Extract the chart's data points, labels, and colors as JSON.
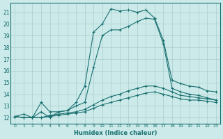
{
  "background_color": "#cceaea",
  "line_color": "#1a7070",
  "grid_color": "#aacccc",
  "xlabel": "Humidex (Indice chaleur)",
  "ylim": [
    11.5,
    21.8
  ],
  "xlim": [
    -0.5,
    23.5
  ],
  "yticks": [
    12,
    13,
    14,
    15,
    16,
    17,
    18,
    19,
    20,
    21
  ],
  "xticks": [
    0,
    1,
    2,
    3,
    4,
    5,
    6,
    7,
    8,
    9,
    10,
    11,
    12,
    13,
    14,
    15,
    16,
    17,
    18,
    19,
    20,
    21,
    22,
    23
  ],
  "lines": [
    {
      "x": [
        0,
        1,
        2,
        3,
        4,
        5,
        6,
        7,
        8,
        9,
        10,
        11,
        12,
        13,
        14,
        15,
        16,
        17,
        18,
        19,
        20,
        21,
        22,
        23
      ],
      "y": [
        12.1,
        12.3,
        12.0,
        12.5,
        12.0,
        12.5,
        12.6,
        13.3,
        14.7,
        19.3,
        20.0,
        21.3,
        21.1,
        21.2,
        21.0,
        21.2,
        20.5,
        18.6,
        15.2,
        14.9,
        14.7,
        14.6,
        14.3,
        14.2
      ]
    },
    {
      "x": [
        0,
        1,
        2,
        3,
        4,
        5,
        6,
        7,
        8,
        9,
        10,
        11,
        12,
        13,
        14,
        15,
        16,
        17,
        18,
        19,
        20,
        21,
        22,
        23
      ],
      "y": [
        12.1,
        12.0,
        12.0,
        12.0,
        12.2,
        12.3,
        12.4,
        12.5,
        12.7,
        13.1,
        13.5,
        13.8,
        14.0,
        14.3,
        14.5,
        14.7,
        14.7,
        14.5,
        14.2,
        13.9,
        13.8,
        13.7,
        13.6,
        13.5
      ]
    },
    {
      "x": [
        0,
        1,
        2,
        3,
        4,
        5,
        6,
        7,
        8,
        9,
        10,
        11,
        12,
        13,
        14,
        15,
        16,
        17,
        18,
        19,
        20,
        21,
        22,
        23
      ],
      "y": [
        12.1,
        12.0,
        12.0,
        12.0,
        12.1,
        12.2,
        12.3,
        12.4,
        12.5,
        12.8,
        13.1,
        13.3,
        13.5,
        13.7,
        13.9,
        14.1,
        14.2,
        14.0,
        13.8,
        13.6,
        13.5,
        13.5,
        13.4,
        13.3
      ]
    },
    {
      "x": [
        0,
        1,
        2,
        3,
        4,
        5,
        6,
        7,
        8,
        9,
        10,
        11,
        12,
        13,
        14,
        15,
        16,
        17,
        18,
        19,
        20,
        21,
        22,
        23
      ],
      "y": [
        12.1,
        12.0,
        12.0,
        13.3,
        12.5,
        12.5,
        12.6,
        13.0,
        13.3,
        16.3,
        19.0,
        19.5,
        19.5,
        19.8,
        20.2,
        20.5,
        20.4,
        18.3,
        14.5,
        14.2,
        14.0,
        13.9,
        13.7,
        13.5
      ]
    }
  ]
}
